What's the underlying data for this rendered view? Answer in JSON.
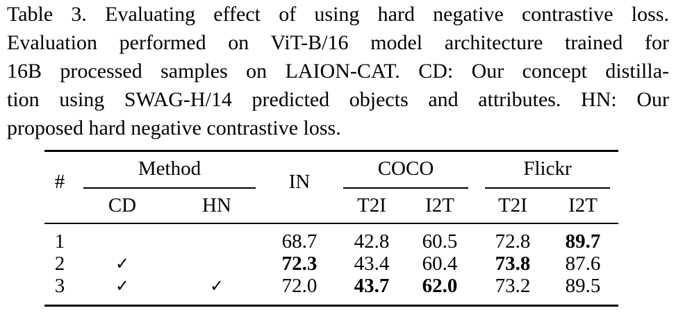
{
  "caption": {
    "lines": [
      "Table 3. Evaluating effect of using hard negative contrastive loss.",
      "Evaluation performed on ViT-B/16 model architecture trained for",
      "16B processed samples on LAION-CAT. CD: Our concept distilla-",
      "tion using SWAG-H/14 predicted objects and attributes. HN: Our",
      "proposed hard negative contrastive loss."
    ]
  },
  "table": {
    "header": {
      "num": "#",
      "method": "Method",
      "in": "IN",
      "coco": "COCO",
      "flickr": "Flickr",
      "cd": "CD",
      "hn": "HN",
      "coco_t2i": "T2I",
      "coco_i2t": "I2T",
      "flickr_t2i": "T2I",
      "flickr_i2t": "I2T"
    },
    "rows": [
      {
        "num": "1",
        "cd": "",
        "hn": "",
        "in": "68.7",
        "coco_t2i": "42.8",
        "coco_i2t": "60.5",
        "flickr_t2i": "72.8",
        "flickr_i2t": "89.7"
      },
      {
        "num": "2",
        "cd": "✓",
        "hn": "",
        "in": "72.3",
        "coco_t2i": "43.4",
        "coco_i2t": "60.4",
        "flickr_t2i": "73.8",
        "flickr_i2t": "87.6"
      },
      {
        "num": "3",
        "cd": "✓",
        "hn": "✓",
        "in": "72.0",
        "coco_t2i": "43.7",
        "coco_i2t": "62.0",
        "flickr_t2i": "73.2",
        "flickr_i2t": "89.5"
      }
    ]
  }
}
